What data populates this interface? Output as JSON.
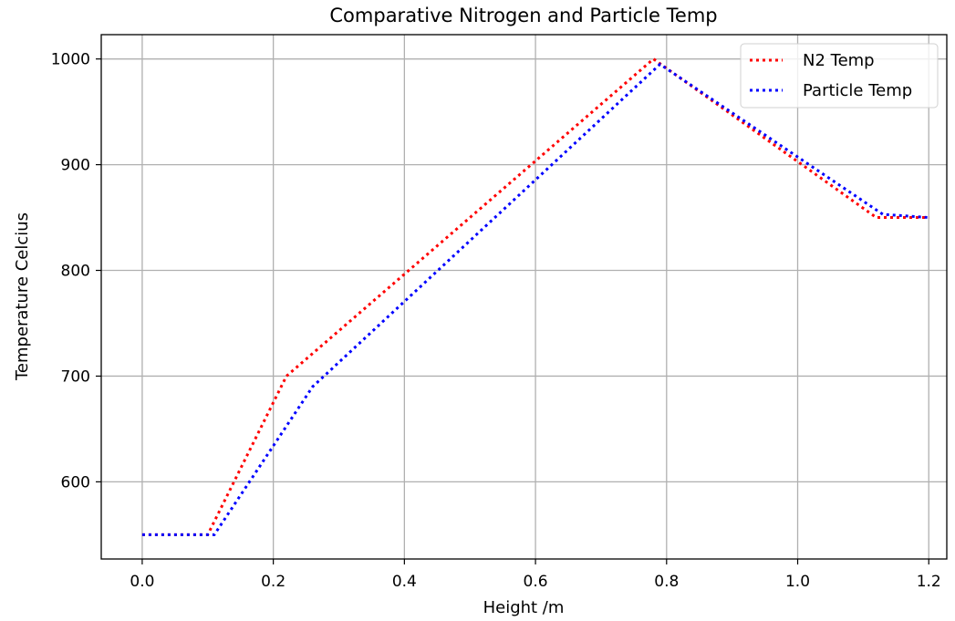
{
  "chart_data": {
    "type": "line",
    "title": "Comparative Nitrogen and Particle Temp",
    "xlabel": "Height /m",
    "ylabel": "Temperature Celcius",
    "xlim": [
      -0.0625,
      1.2275
    ],
    "ylim": [
      527,
      1023
    ],
    "xticks": [
      0.0,
      0.2,
      0.4,
      0.6,
      0.8,
      1.0,
      1.2
    ],
    "xtick_labels": [
      "0.0",
      "0.2",
      "0.4",
      "0.6",
      "0.8",
      "1.0",
      "1.2"
    ],
    "yticks": [
      600,
      700,
      800,
      900,
      1000
    ],
    "ytick_labels": [
      "600",
      "700",
      "800",
      "900",
      "1000"
    ],
    "grid": true,
    "legend_position": "top-right",
    "series": [
      {
        "name": "N2 Temp",
        "color": "#ff0000",
        "line_style": "dotted",
        "x": [
          0.0,
          0.1,
          0.22,
          0.78,
          1.12,
          1.2
        ],
        "y": [
          550,
          550,
          700,
          1000,
          850,
          850
        ]
      },
      {
        "name": "Particle Temp",
        "color": "#0000ff",
        "line_style": "dotted",
        "x": [
          0.0,
          0.11,
          0.26,
          0.79,
          1.13,
          1.2
        ],
        "y": [
          550,
          550,
          690,
          995,
          853,
          850
        ]
      }
    ]
  }
}
